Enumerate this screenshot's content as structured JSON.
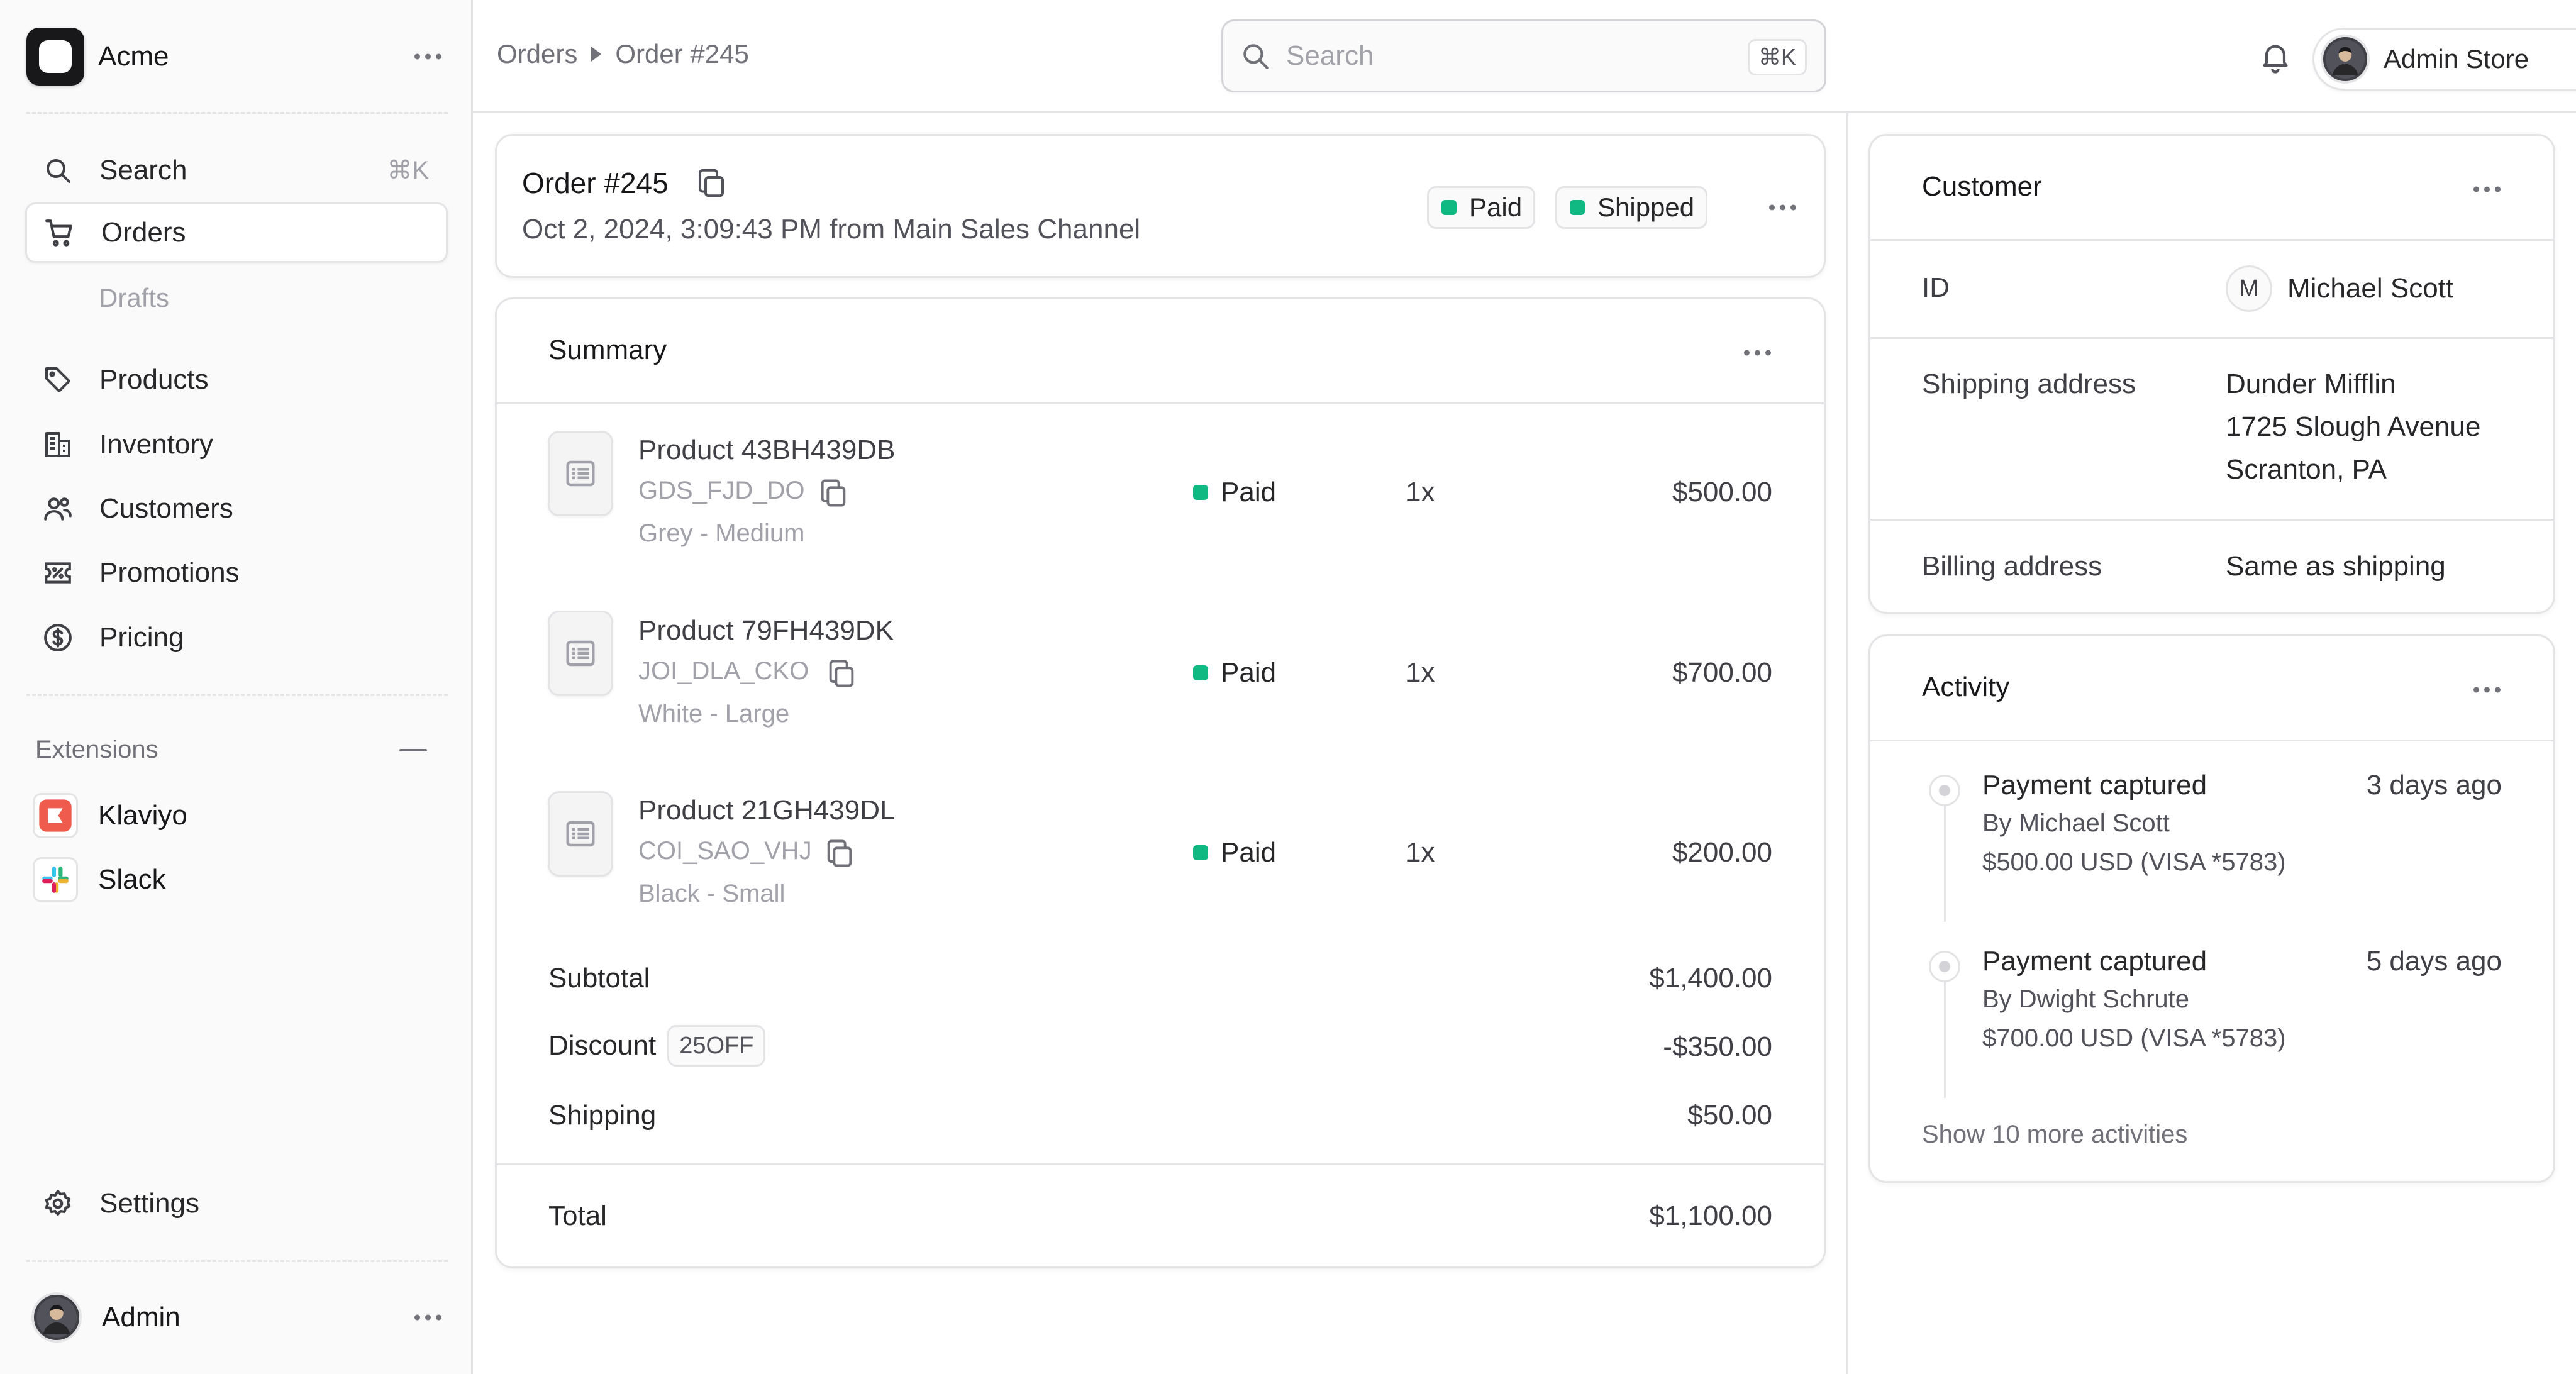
{
  "sidebar": {
    "brand": "Acme",
    "nav": [
      {
        "label": "Search",
        "shortcut": "⌘K"
      },
      {
        "label": "Orders"
      },
      {
        "label": "Drafts"
      },
      {
        "label": "Products"
      },
      {
        "label": "Inventory"
      },
      {
        "label": "Customers"
      },
      {
        "label": "Promotions"
      },
      {
        "label": "Pricing"
      }
    ],
    "extensions_title": "Extensions",
    "extensions": [
      {
        "label": "Klaviyo"
      },
      {
        "label": "Slack"
      }
    ],
    "settings": "Settings",
    "user": "Admin"
  },
  "topbar": {
    "breadcrumb": [
      "Orders",
      "Order #245"
    ],
    "search_placeholder": "Search",
    "search_shortcut": "⌘K",
    "store": "Admin Store"
  },
  "order": {
    "title": "Order #245",
    "subtitle": "Oct 2, 2024, 3:09:43 PM from Main Sales Channel",
    "badges": [
      "Paid",
      "Shipped"
    ]
  },
  "summary": {
    "title": "Summary",
    "items": [
      {
        "name": "Product 43BH439DB",
        "sku": "GDS_FJD_DO",
        "variant": "Grey - Medium",
        "status": "Paid",
        "qty": "1x",
        "price": "$500.00"
      },
      {
        "name": "Product 79FH439DK",
        "sku": "JOI_DLA_CKO",
        "variant": "White - Large",
        "status": "Paid",
        "qty": "1x",
        "price": "$700.00"
      },
      {
        "name": "Product 21GH439DL",
        "sku": "COI_SAO_VHJ",
        "variant": "Black - Small",
        "status": "Paid",
        "qty": "1x",
        "price": "$200.00"
      }
    ],
    "subtotal_label": "Subtotal",
    "subtotal": "$1,400.00",
    "discount_label": "Discount",
    "discount_code": "25OFF",
    "discount": "-$350.00",
    "shipping_label": "Shipping",
    "shipping": "$50.00",
    "total_label": "Total",
    "total": "$1,100.00"
  },
  "customer": {
    "title": "Customer",
    "id_label": "ID",
    "avatar_initial": "M",
    "name": "Michael Scott",
    "shipping_label": "Shipping address",
    "shipping_lines": [
      "Dunder Mifflin",
      "1725 Slough Avenue",
      "Scranton, PA"
    ],
    "billing_label": "Billing address",
    "billing": "Same as shipping"
  },
  "activity": {
    "title": "Activity",
    "events": [
      {
        "title": "Payment captured",
        "time": "3 days ago",
        "by": "By Michael Scott",
        "amount": "$500.00 USD (VISA *5783)"
      },
      {
        "title": "Payment captured",
        "time": "5 days ago",
        "by": "By Dwight Schrute",
        "amount": "$700.00 USD (VISA *5783)"
      }
    ],
    "more": "Show 10 more activities"
  }
}
